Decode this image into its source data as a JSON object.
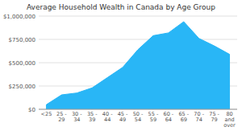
{
  "chart_data": {
    "type": "area",
    "title": "Average Household Wealth in Canada by Age Group",
    "categories": [
      "<25",
      "25 -\n29",
      "30 -\n34",
      "35 -\n39",
      "40 -\n44",
      "45 -\n49",
      "50 -\n54",
      "55 -\n59",
      "60 -\n64",
      "65 -\n69",
      "70 -\n74",
      "75 -\n79",
      "80\nand\nover"
    ],
    "values": [
      50000,
      155000,
      175000,
      230000,
      340000,
      450000,
      640000,
      790000,
      820000,
      940000,
      760000,
      680000,
      590000
    ],
    "color": "#29B6F6",
    "ylim": [
      0,
      1000000
    ],
    "yticks": [
      {
        "value": 0,
        "label": "$0"
      },
      {
        "value": 250000,
        "label": "$250,000"
      },
      {
        "value": 500000,
        "label": "$500,000"
      },
      {
        "value": 750000,
        "label": "$750,000"
      },
      {
        "value": 1000000,
        "label": "$1,000,000"
      }
    ],
    "grid": true
  }
}
